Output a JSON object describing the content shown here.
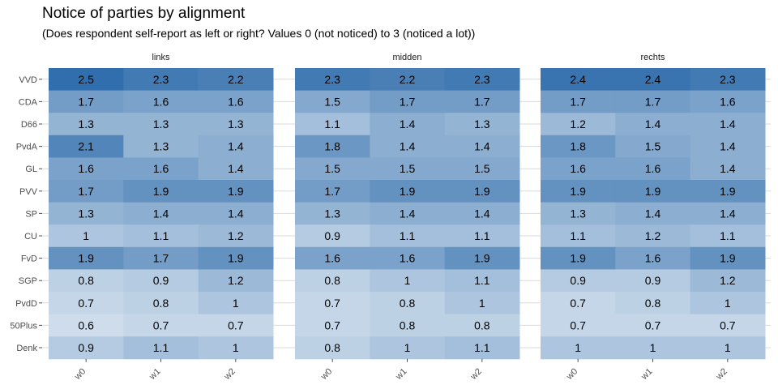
{
  "chart_data": {
    "type": "heatmap",
    "title": "Notice of parties by alignment",
    "subtitle": "(Does respondent self-report as left or right? Values 0 (not noticed) to 3 (noticed a lot))",
    "xlabel": "",
    "ylabel": "",
    "facets": [
      "links",
      "midden",
      "rechts"
    ],
    "x": [
      "w0",
      "w1",
      "w2"
    ],
    "y": [
      "VVD",
      "CDA",
      "D66",
      "PvdA",
      "GL",
      "PVV",
      "SP",
      "CU",
      "FvD",
      "SGP",
      "PvdD",
      "50Plus",
      "Denk"
    ],
    "value_range": [
      0,
      3
    ],
    "color_low": "#ffffff",
    "color_high": "#08519c",
    "grid": true,
    "legend": "none",
    "values": {
      "links": [
        [
          2.5,
          2.3,
          2.2
        ],
        [
          1.7,
          1.6,
          1.6
        ],
        [
          1.3,
          1.3,
          1.3
        ],
        [
          2.1,
          1.3,
          1.4
        ],
        [
          1.6,
          1.6,
          1.4
        ],
        [
          1.7,
          1.9,
          1.9
        ],
        [
          1.3,
          1.4,
          1.4
        ],
        [
          1,
          1.1,
          1.2
        ],
        [
          1.9,
          1.7,
          1.9
        ],
        [
          0.8,
          0.9,
          1.2
        ],
        [
          0.7,
          0.8,
          1
        ],
        [
          0.6,
          0.7,
          0.7
        ],
        [
          0.9,
          1.1,
          1
        ]
      ],
      "midden": [
        [
          2.3,
          2.2,
          2.3
        ],
        [
          1.5,
          1.7,
          1.7
        ],
        [
          1.1,
          1.4,
          1.3
        ],
        [
          1.8,
          1.4,
          1.4
        ],
        [
          1.5,
          1.5,
          1.5
        ],
        [
          1.7,
          1.9,
          1.9
        ],
        [
          1.3,
          1.4,
          1.4
        ],
        [
          0.9,
          1.1,
          1.1
        ],
        [
          1.6,
          1.6,
          1.9
        ],
        [
          0.8,
          1,
          1.1
        ],
        [
          0.7,
          0.8,
          1
        ],
        [
          0.7,
          0.8,
          0.8
        ],
        [
          0.8,
          1,
          1.1
        ]
      ],
      "rechts": [
        [
          2.4,
          2.4,
          2.3
        ],
        [
          1.7,
          1.7,
          1.6
        ],
        [
          1.2,
          1.4,
          1.4
        ],
        [
          1.8,
          1.5,
          1.4
        ],
        [
          1.6,
          1.6,
          1.4
        ],
        [
          1.9,
          1.9,
          1.9
        ],
        [
          1.3,
          1.4,
          1.4
        ],
        [
          1.1,
          1.2,
          1.1
        ],
        [
          1.9,
          1.6,
          1.9
        ],
        [
          0.9,
          0.9,
          1.2
        ],
        [
          0.7,
          0.8,
          1
        ],
        [
          0.7,
          0.7,
          0.7
        ],
        [
          1,
          1,
          1
        ]
      ]
    }
  }
}
